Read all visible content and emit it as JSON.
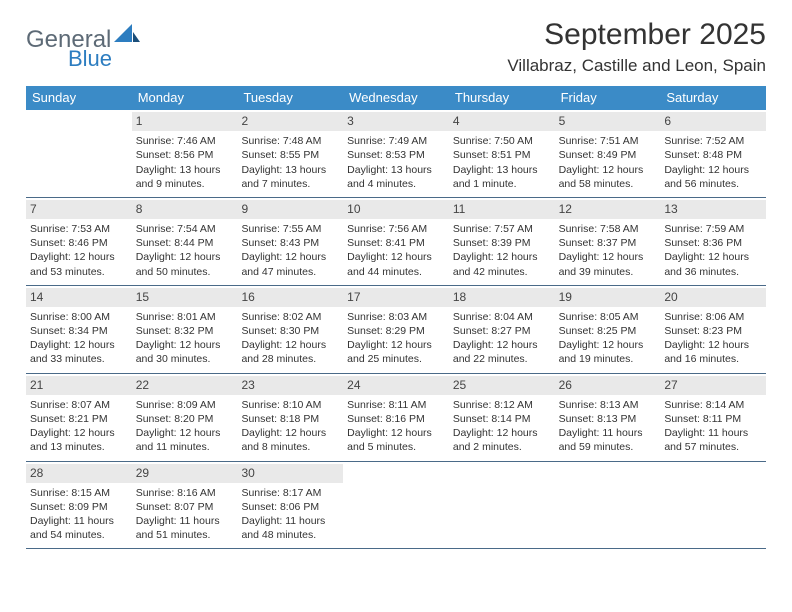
{
  "logo": {
    "general": "General",
    "blue": "Blue"
  },
  "title": "September 2025",
  "location": "Villabraz, Castille and Leon, Spain",
  "colors": {
    "header_bar": "#3b8bc7",
    "header_text": "#ffffff",
    "daynum_bg": "#e9e9e9",
    "divider": "#4a6a88",
    "logo_gray": "#5d6a76",
    "logo_blue": "#2d7dc0",
    "sail_blue": "#2d7dc0",
    "sail_dark": "#1a4e7a"
  },
  "dow": [
    "Sunday",
    "Monday",
    "Tuesday",
    "Wednesday",
    "Thursday",
    "Friday",
    "Saturday"
  ],
  "weeks": [
    [
      {
        "n": "",
        "sr": "",
        "ss": "",
        "dl": ""
      },
      {
        "n": "1",
        "sr": "7:46 AM",
        "ss": "8:56 PM",
        "dl": "13 hours and 9 minutes."
      },
      {
        "n": "2",
        "sr": "7:48 AM",
        "ss": "8:55 PM",
        "dl": "13 hours and 7 minutes."
      },
      {
        "n": "3",
        "sr": "7:49 AM",
        "ss": "8:53 PM",
        "dl": "13 hours and 4 minutes."
      },
      {
        "n": "4",
        "sr": "7:50 AM",
        "ss": "8:51 PM",
        "dl": "13 hours and 1 minute."
      },
      {
        "n": "5",
        "sr": "7:51 AM",
        "ss": "8:49 PM",
        "dl": "12 hours and 58 minutes."
      },
      {
        "n": "6",
        "sr": "7:52 AM",
        "ss": "8:48 PM",
        "dl": "12 hours and 56 minutes."
      }
    ],
    [
      {
        "n": "7",
        "sr": "7:53 AM",
        "ss": "8:46 PM",
        "dl": "12 hours and 53 minutes."
      },
      {
        "n": "8",
        "sr": "7:54 AM",
        "ss": "8:44 PM",
        "dl": "12 hours and 50 minutes."
      },
      {
        "n": "9",
        "sr": "7:55 AM",
        "ss": "8:43 PM",
        "dl": "12 hours and 47 minutes."
      },
      {
        "n": "10",
        "sr": "7:56 AM",
        "ss": "8:41 PM",
        "dl": "12 hours and 44 minutes."
      },
      {
        "n": "11",
        "sr": "7:57 AM",
        "ss": "8:39 PM",
        "dl": "12 hours and 42 minutes."
      },
      {
        "n": "12",
        "sr": "7:58 AM",
        "ss": "8:37 PM",
        "dl": "12 hours and 39 minutes."
      },
      {
        "n": "13",
        "sr": "7:59 AM",
        "ss": "8:36 PM",
        "dl": "12 hours and 36 minutes."
      }
    ],
    [
      {
        "n": "14",
        "sr": "8:00 AM",
        "ss": "8:34 PM",
        "dl": "12 hours and 33 minutes."
      },
      {
        "n": "15",
        "sr": "8:01 AM",
        "ss": "8:32 PM",
        "dl": "12 hours and 30 minutes."
      },
      {
        "n": "16",
        "sr": "8:02 AM",
        "ss": "8:30 PM",
        "dl": "12 hours and 28 minutes."
      },
      {
        "n": "17",
        "sr": "8:03 AM",
        "ss": "8:29 PM",
        "dl": "12 hours and 25 minutes."
      },
      {
        "n": "18",
        "sr": "8:04 AM",
        "ss": "8:27 PM",
        "dl": "12 hours and 22 minutes."
      },
      {
        "n": "19",
        "sr": "8:05 AM",
        "ss": "8:25 PM",
        "dl": "12 hours and 19 minutes."
      },
      {
        "n": "20",
        "sr": "8:06 AM",
        "ss": "8:23 PM",
        "dl": "12 hours and 16 minutes."
      }
    ],
    [
      {
        "n": "21",
        "sr": "8:07 AM",
        "ss": "8:21 PM",
        "dl": "12 hours and 13 minutes."
      },
      {
        "n": "22",
        "sr": "8:09 AM",
        "ss": "8:20 PM",
        "dl": "12 hours and 11 minutes."
      },
      {
        "n": "23",
        "sr": "8:10 AM",
        "ss": "8:18 PM",
        "dl": "12 hours and 8 minutes."
      },
      {
        "n": "24",
        "sr": "8:11 AM",
        "ss": "8:16 PM",
        "dl": "12 hours and 5 minutes."
      },
      {
        "n": "25",
        "sr": "8:12 AM",
        "ss": "8:14 PM",
        "dl": "12 hours and 2 minutes."
      },
      {
        "n": "26",
        "sr": "8:13 AM",
        "ss": "8:13 PM",
        "dl": "11 hours and 59 minutes."
      },
      {
        "n": "27",
        "sr": "8:14 AM",
        "ss": "8:11 PM",
        "dl": "11 hours and 57 minutes."
      }
    ],
    [
      {
        "n": "28",
        "sr": "8:15 AM",
        "ss": "8:09 PM",
        "dl": "11 hours and 54 minutes."
      },
      {
        "n": "29",
        "sr": "8:16 AM",
        "ss": "8:07 PM",
        "dl": "11 hours and 51 minutes."
      },
      {
        "n": "30",
        "sr": "8:17 AM",
        "ss": "8:06 PM",
        "dl": "11 hours and 48 minutes."
      },
      {
        "n": "",
        "sr": "",
        "ss": "",
        "dl": ""
      },
      {
        "n": "",
        "sr": "",
        "ss": "",
        "dl": ""
      },
      {
        "n": "",
        "sr": "",
        "ss": "",
        "dl": ""
      },
      {
        "n": "",
        "sr": "",
        "ss": "",
        "dl": ""
      }
    ]
  ],
  "labels": {
    "sunrise": "Sunrise:",
    "sunset": "Sunset:",
    "daylight": "Daylight:"
  }
}
